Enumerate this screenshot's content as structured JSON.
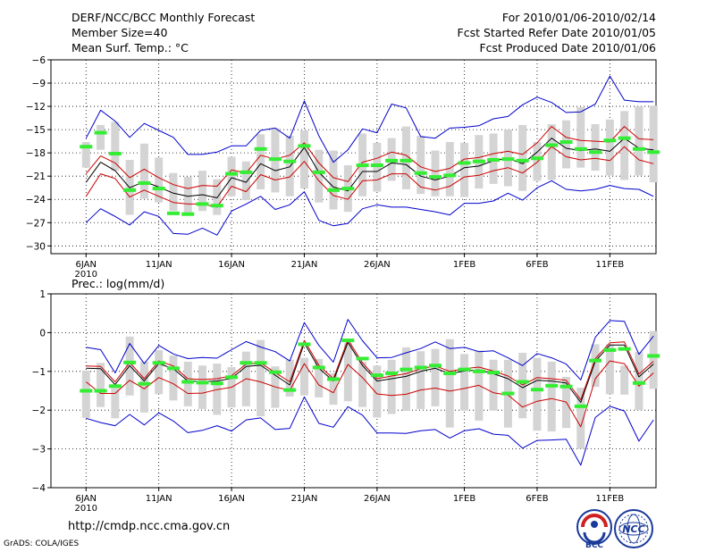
{
  "header": {
    "title": "DERF/NCC/BCC Monthly Forecast",
    "member_size": "Member Size=40",
    "variable": "Mean Surf. Temp.: °C",
    "forecast_period": "For 2010/01/06-2010/02/14",
    "start_date": "Fcst Started Refer Date 2010/01/05",
    "produced_date": "Fcst Produced Date 2010/01/06"
  },
  "footer": {
    "url": "http://cmdp.ncc.cma.gov.cn",
    "credit": "GrADS: COLA/IGES",
    "logo_bcc": "BCC",
    "logo_ncc": "NCC"
  },
  "colors": {
    "ensemble_mean": "#000000",
    "inner_band": "#cc0000",
    "outer_band": "#0000cc",
    "member_box": "#d4d4d4",
    "marker": "#33ee33",
    "grid": "#000000"
  },
  "chart_data": [
    {
      "type": "line",
      "title": "Mean Surf. Temp.: °C",
      "x_tick_labels": [
        "6JAN",
        "11JAN",
        "16JAN",
        "21JAN",
        "26JAN",
        "1FEB",
        "6FEB",
        "11FEB"
      ],
      "x_tick_days": [
        1,
        6,
        11,
        16,
        21,
        27,
        32,
        37
      ],
      "year_label": "2010",
      "ylim": [
        -31,
        -6
      ],
      "yticks": [
        -30,
        -27,
        -24,
        -21,
        -18,
        -15,
        -12,
        -9,
        -6
      ],
      "ytick_labels": [
        "−30",
        "−27",
        "−24",
        "−21",
        "−18",
        "−15",
        "−12",
        "−9",
        "−6"
      ],
      "days": [
        1,
        2,
        3,
        4,
        5,
        6,
        7,
        8,
        9,
        10,
        11,
        12,
        13,
        14,
        15,
        16,
        17,
        18,
        19,
        20,
        21,
        22,
        23,
        24,
        25,
        26,
        27,
        28,
        29,
        30,
        31,
        32,
        33,
        34,
        35,
        36,
        37,
        38,
        39,
        40
      ],
      "series": [
        {
          "name": "ensemble_mean",
          "values": [
            -21.8,
            -19.2,
            -20.3,
            -22.5,
            -21.7,
            -22.4,
            -23.2,
            -23.6,
            -23.4,
            -23.8,
            -21.2,
            -21.8,
            -19.4,
            -20.3,
            -19.8,
            -17.3,
            -20.5,
            -22.4,
            -22.9,
            -20.4,
            -20.4,
            -19.3,
            -19.5,
            -21.0,
            -21.5,
            -21.0,
            -19.9,
            -19.7,
            -19.0,
            -18.7,
            -19.4,
            -17.9,
            -16.1,
            -17.4,
            -17.7,
            -17.5,
            -17.8,
            -16.1,
            -17.4,
            -17.6
          ]
        },
        {
          "name": "upper_inner",
          "values": [
            -20.7,
            -18.4,
            -19.3,
            -21.2,
            -20.1,
            -21.2,
            -22.1,
            -22.6,
            -22.2,
            -22.3,
            -20.2,
            -20.6,
            -18.3,
            -18.8,
            -18.3,
            -16.7,
            -19.3,
            -21.2,
            -21.7,
            -19.2,
            -18.7,
            -17.9,
            -18.3,
            -19.8,
            -20.4,
            -20.0,
            -18.8,
            -18.6,
            -18.1,
            -17.8,
            -18.2,
            -16.7,
            -14.6,
            -16.0,
            -16.4,
            -16.5,
            -16.6,
            -14.6,
            -16.2,
            -16.3
          ]
        },
        {
          "name": "lower_inner",
          "values": [
            -23.6,
            -20.7,
            -21.3,
            -23.7,
            -22.8,
            -23.6,
            -24.4,
            -24.6,
            -24.6,
            -25.0,
            -22.3,
            -23.0,
            -20.8,
            -21.5,
            -21.1,
            -19.1,
            -21.6,
            -23.5,
            -24.0,
            -21.6,
            -21.5,
            -20.7,
            -20.7,
            -22.4,
            -22.8,
            -22.3,
            -21.1,
            -20.9,
            -20.3,
            -19.9,
            -20.6,
            -19.2,
            -17.2,
            -18.5,
            -18.9,
            -18.7,
            -19.0,
            -17.2,
            -18.9,
            -19.4
          ]
        },
        {
          "name": "upper_outer",
          "values": [
            -16.1,
            -12.5,
            -13.9,
            -16.0,
            -14.2,
            -15.1,
            -16.0,
            -18.2,
            -18.2,
            -17.9,
            -17.1,
            -17.1,
            -15.1,
            -14.8,
            -16.1,
            -11.3,
            -15.8,
            -19.2,
            -17.6,
            -14.9,
            -15.4,
            -11.7,
            -12.2,
            -15.9,
            -16.1,
            -14.8,
            -14.7,
            -14.5,
            -13.6,
            -13.3,
            -11.8,
            -10.8,
            -11.5,
            -12.8,
            -12.7,
            -11.7,
            -8.1,
            -11.2,
            -11.4,
            -11.4
          ]
        },
        {
          "name": "lower_outer",
          "values": [
            -27.0,
            -25.2,
            -26.2,
            -27.3,
            -25.6,
            -26.2,
            -28.4,
            -28.5,
            -27.7,
            -28.6,
            -25.5,
            -24.6,
            -23.6,
            -25.3,
            -24.7,
            -23.0,
            -26.7,
            -27.4,
            -27.1,
            -25.2,
            -24.7,
            -25.0,
            -25.0,
            -25.3,
            -25.6,
            -26.0,
            -24.5,
            -24.5,
            -24.2,
            -23.2,
            -24.1,
            -22.5,
            -21.6,
            -22.7,
            -22.9,
            -22.7,
            -22.2,
            -22.6,
            -22.7,
            -23.6
          ]
        },
        {
          "name": "box_top",
          "values": [
            -16.6,
            -14.4,
            -14.0,
            -18.9,
            -16.8,
            -18.6,
            -20.6,
            -21.1,
            -20.3,
            -21.4,
            -18.5,
            -19.1,
            -15.6,
            -14.8,
            -15.8,
            -15.1,
            -17.6,
            -17.7,
            -19.6,
            -15.5,
            -16.7,
            -16.1,
            -14.6,
            -15.8,
            -17.7,
            -16.6,
            -16.7,
            -15.7,
            -15.5,
            -15.0,
            -14.4,
            -16.6,
            -14.3,
            -13.8,
            -12.1,
            -14.3,
            -13.7,
            -12.6,
            -12.0,
            -11.9
          ]
        },
        {
          "name": "box_bottom",
          "values": [
            -19.9,
            -17.6,
            -20.3,
            -26.0,
            -23.9,
            -24.4,
            -25.5,
            -26.0,
            -25.5,
            -26.0,
            -23.6,
            -24.1,
            -22.7,
            -23.1,
            -23.6,
            -22.6,
            -24.4,
            -25.3,
            -25.6,
            -23.6,
            -23.0,
            -21.6,
            -22.7,
            -23.3,
            -23.6,
            -23.6,
            -23.7,
            -22.6,
            -22.0,
            -22.3,
            -22.9,
            -21.6,
            -21.5,
            -20.0,
            -19.9,
            -20.3,
            -20.9,
            -21.5,
            -20.9,
            -21.8
          ]
        },
        {
          "name": "markers",
          "values": [
            -17.2,
            -15.4,
            -18.1,
            -22.8,
            -21.9,
            -22.6,
            -25.8,
            -25.9,
            -24.6,
            -24.8,
            -20.7,
            -20.5,
            -17.5,
            -18.8,
            -19.1,
            -17.1,
            -20.5,
            -22.8,
            -22.6,
            -19.6,
            -19.6,
            -19.0,
            -19.0,
            -20.6,
            -21.1,
            -20.9,
            -19.3,
            -19.1,
            -18.9,
            -18.8,
            -19.0,
            -18.7,
            -17.0,
            -16.6,
            -17.5,
            -17.9,
            -16.4,
            -16.1,
            -17.5,
            -17.9
          ]
        }
      ]
    },
    {
      "type": "line",
      "title": "Prec.: log(mm/d)",
      "x_tick_labels": [
        "6JAN",
        "11JAN",
        "16JAN",
        "21JAN",
        "26JAN",
        "1FEB",
        "6FEB",
        "11FEB"
      ],
      "x_tick_days": [
        1,
        6,
        11,
        16,
        21,
        27,
        32,
        37
      ],
      "year_label": "2010",
      "ylim": [
        -4,
        1
      ],
      "yticks": [
        -4,
        -3,
        -2,
        -1,
        0,
        1
      ],
      "ytick_labels": [
        "−4",
        "−3",
        "−2",
        "−1",
        "0",
        "1"
      ],
      "days": [
        1,
        2,
        3,
        4,
        5,
        6,
        7,
        8,
        9,
        10,
        11,
        12,
        13,
        14,
        15,
        16,
        17,
        18,
        19,
        20,
        21,
        22,
        23,
        24,
        25,
        26,
        27,
        28,
        29,
        30,
        31,
        32,
        33,
        34,
        35,
        36,
        37,
        38,
        39,
        40
      ],
      "series": [
        {
          "name": "ensemble_mean",
          "values": [
            -0.92,
            -0.93,
            -1.34,
            -0.85,
            -1.25,
            -0.8,
            -0.93,
            -1.25,
            -1.26,
            -1.25,
            -1.18,
            -0.87,
            -0.84,
            -1.1,
            -1.35,
            -0.27,
            -0.92,
            -1.25,
            -0.25,
            -0.85,
            -1.25,
            -1.19,
            -1.13,
            -1.0,
            -0.92,
            -1.06,
            -0.99,
            -0.96,
            -1.06,
            -1.19,
            -1.42,
            -1.23,
            -1.25,
            -1.3,
            -1.8,
            -0.74,
            -0.32,
            -0.32,
            -1.14,
            -0.81
          ]
        },
        {
          "name": "upper_inner",
          "values": [
            -0.86,
            -0.87,
            -1.27,
            -0.77,
            -1.19,
            -0.73,
            -0.86,
            -1.19,
            -1.21,
            -1.19,
            -1.11,
            -0.81,
            -0.78,
            -1.03,
            -1.27,
            -0.2,
            -0.84,
            -1.19,
            -0.18,
            -0.78,
            -1.19,
            -1.12,
            -1.06,
            -0.93,
            -0.86,
            -1.0,
            -0.93,
            -0.89,
            -0.99,
            -1.12,
            -1.35,
            -1.16,
            -1.19,
            -1.23,
            -1.73,
            -0.67,
            -0.26,
            -0.24,
            -1.07,
            -0.74
          ]
        },
        {
          "name": "lower_inner",
          "values": [
            -1.27,
            -1.57,
            -1.57,
            -1.23,
            -1.45,
            -1.16,
            -1.32,
            -1.57,
            -1.56,
            -1.47,
            -1.41,
            -1.19,
            -1.27,
            -1.4,
            -1.49,
            -0.8,
            -1.35,
            -1.55,
            -0.82,
            -1.16,
            -1.58,
            -1.62,
            -1.59,
            -1.48,
            -1.43,
            -1.51,
            -1.44,
            -1.36,
            -1.55,
            -1.61,
            -1.92,
            -1.77,
            -1.7,
            -1.79,
            -2.43,
            -1.19,
            -0.73,
            -0.8,
            -1.38,
            -1.04
          ]
        },
        {
          "name": "upper_outer",
          "values": [
            -0.38,
            -0.44,
            -1.04,
            -0.28,
            -0.8,
            -0.33,
            -0.55,
            -0.67,
            -0.64,
            -0.66,
            -0.44,
            -0.23,
            -0.37,
            -0.49,
            -0.73,
            0.26,
            -0.33,
            -0.76,
            0.34,
            -0.21,
            -0.65,
            -0.64,
            -0.52,
            -0.41,
            -0.24,
            -0.41,
            -0.38,
            -0.49,
            -0.47,
            -0.65,
            -0.85,
            -0.54,
            -0.65,
            -0.81,
            -1.22,
            -0.12,
            0.31,
            0.29,
            -0.56,
            -0.09
          ]
        },
        {
          "name": "lower_outer",
          "values": [
            -2.21,
            -2.32,
            -2.4,
            -2.11,
            -2.38,
            -2.07,
            -2.28,
            -2.58,
            -2.52,
            -2.4,
            -2.54,
            -2.25,
            -2.2,
            -2.5,
            -2.47,
            -1.66,
            -2.34,
            -2.44,
            -1.91,
            -2.13,
            -2.59,
            -2.59,
            -2.6,
            -2.53,
            -2.5,
            -2.72,
            -2.53,
            -2.48,
            -2.62,
            -2.65,
            -2.98,
            -2.78,
            -2.77,
            -2.75,
            -3.42,
            -2.19,
            -1.9,
            -2.02,
            -2.8,
            -2.25
          ]
        },
        {
          "name": "box_top",
          "values": [
            -0.98,
            -0.78,
            -1.43,
            -0.1,
            -0.75,
            -0.45,
            -0.59,
            -0.75,
            -0.85,
            -0.8,
            -0.89,
            -0.49,
            -0.19,
            -0.87,
            -0.7,
            -0.65,
            -0.68,
            -1.05,
            -0.27,
            -0.75,
            -0.85,
            -0.7,
            -0.38,
            -0.48,
            -0.42,
            -0.17,
            -0.55,
            -0.46,
            -0.7,
            -0.7,
            -0.52,
            -0.65,
            -0.75,
            -1.14,
            -1.42,
            -0.3,
            -0.3,
            -0.85,
            -0.5,
            0.04
          ]
        },
        {
          "name": "box_bottom",
          "values": [
            -2.2,
            -1.92,
            -2.21,
            -1.62,
            -2.06,
            -1.59,
            -1.75,
            -1.9,
            -1.97,
            -2.12,
            -1.93,
            -1.9,
            -2.16,
            -1.94,
            -1.65,
            -1.62,
            -1.67,
            -1.86,
            -1.77,
            -1.92,
            -2.19,
            -2.1,
            -2.02,
            -1.97,
            -1.9,
            -2.45,
            -2.01,
            -2.27,
            -2.01,
            -2.45,
            -2.21,
            -2.53,
            -2.55,
            -2.46,
            -3.0,
            -1.4,
            -1.59,
            -1.6,
            -2.0,
            -1.45
          ]
        },
        {
          "name": "markers",
          "values": [
            -1.5,
            -1.5,
            -1.38,
            -0.77,
            -1.32,
            -0.78,
            -0.92,
            -1.27,
            -1.29,
            -1.31,
            -1.15,
            -0.78,
            -0.78,
            -1.02,
            -1.48,
            -0.3,
            -0.9,
            -1.2,
            -0.2,
            -0.67,
            -1.1,
            -1.05,
            -0.95,
            -0.9,
            -0.85,
            -1.05,
            -0.95,
            -1.0,
            -1.03,
            -1.57,
            -1.27,
            -1.47,
            -1.37,
            -1.39,
            -1.9,
            -0.72,
            -0.45,
            -0.42,
            -1.3,
            -0.6
          ]
        }
      ]
    }
  ]
}
